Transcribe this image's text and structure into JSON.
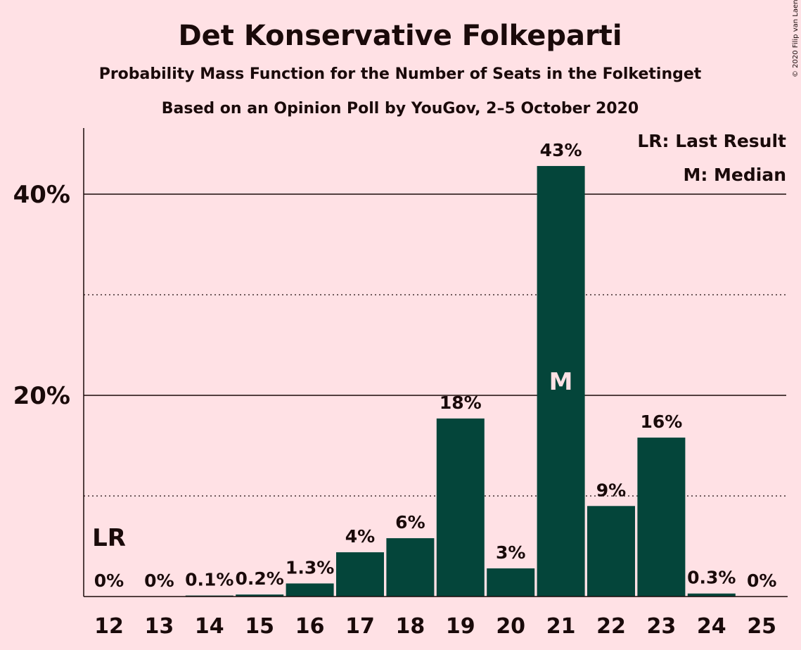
{
  "chart_data": {
    "type": "bar",
    "title": "Det Konservative Folkeparti",
    "subtitle": "Probability Mass Function for the Number of Seats in the Folketinget",
    "subtitle2": "Based on an Opinion Poll by YouGov, 2–5 October 2020",
    "copyright": "© 2020 Filip van Laenen",
    "categories": [
      "12",
      "13",
      "14",
      "15",
      "16",
      "17",
      "18",
      "19",
      "20",
      "21",
      "22",
      "23",
      "24",
      "25"
    ],
    "values": [
      0,
      0,
      0.1,
      0.2,
      1.3,
      4.4,
      5.8,
      17.7,
      2.8,
      42.8,
      9.0,
      15.8,
      0.3,
      0
    ],
    "value_labels": [
      "0%",
      "0%",
      "0.1%",
      "0.2%",
      "1.3%",
      "4%",
      "6%",
      "18%",
      "3%",
      "43%",
      "9%",
      "16%",
      "0.3%",
      "0%"
    ],
    "ylim": [
      0,
      47
    ],
    "yticks": [
      {
        "value": 20,
        "label": "20%"
      },
      {
        "value": 40,
        "label": "40%"
      }
    ],
    "minor_gridlines": [
      10,
      30
    ],
    "bar_color": "#04453A",
    "background_color": "#FFE1E5",
    "last_result": {
      "category": "12",
      "marker": "LR"
    },
    "median": {
      "category": "21",
      "marker": "M"
    },
    "legend": {
      "placement": "top-right",
      "entries": [
        "LR: Last Result",
        "M: Median"
      ]
    }
  }
}
